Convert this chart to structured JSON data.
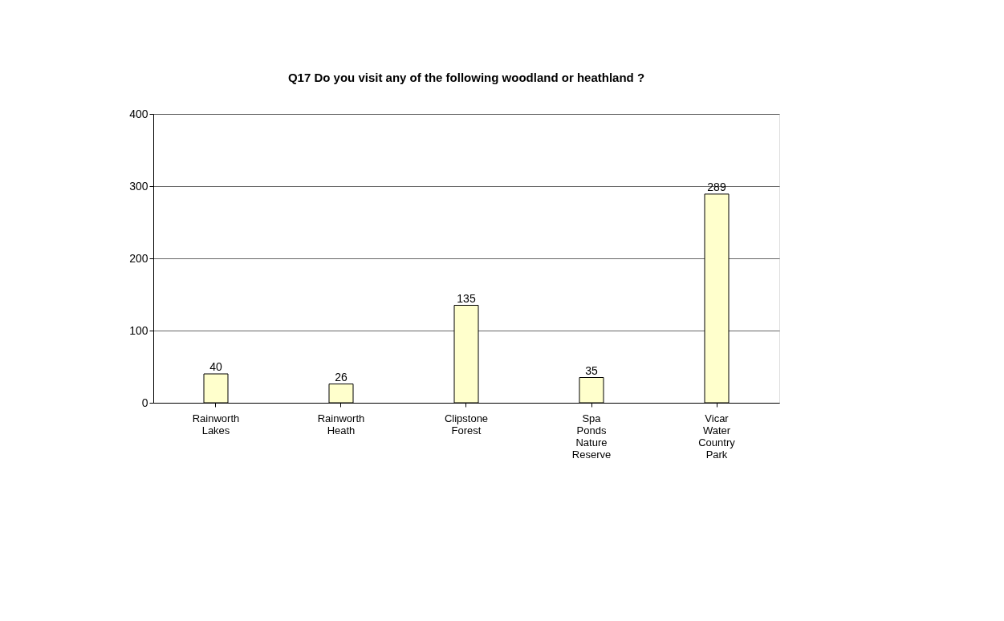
{
  "chart_data": {
    "type": "bar",
    "title": "Q17 Do you visit any of the following woodland or heathland  ?",
    "categories": [
      "Rainworth Lakes",
      "Rainworth Heath",
      "Clipstone Forest",
      "Spa Ponds Nature Reserve",
      "Vicar Water Country Park"
    ],
    "values": [
      40,
      26,
      135,
      35,
      289
    ],
    "color": "#ffffcc",
    "ylim": [
      0,
      400
    ],
    "yticks": [
      0,
      100,
      200,
      300,
      400
    ],
    "grid": "y",
    "data_labels": true
  }
}
